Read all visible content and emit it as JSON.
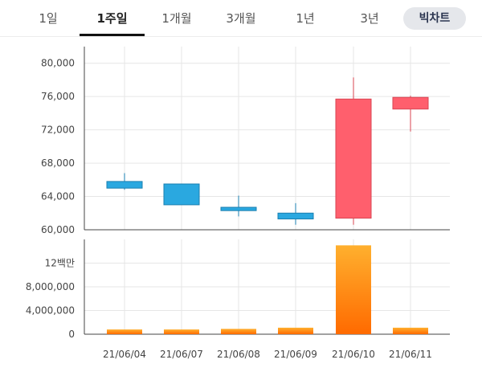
{
  "tabs": [
    {
      "label": "1일",
      "active": false
    },
    {
      "label": "1주일",
      "active": true
    },
    {
      "label": "1개월",
      "active": false
    },
    {
      "label": "3개월",
      "active": false
    },
    {
      "label": "1년",
      "active": false
    },
    {
      "label": "3년",
      "active": false
    }
  ],
  "candle_button": "빅차트",
  "colors": {
    "down": "#2aa8e0",
    "up": "#ff5f6d",
    "volume_top": "#ffb02e",
    "volume_bottom": "#ff6a00"
  },
  "chart_data": [
    {
      "type": "candlestick",
      "categories": [
        "21/06/04",
        "21/06/07",
        "21/06/08",
        "21/06/09",
        "21/06/10",
        "21/06/11"
      ],
      "series": [
        {
          "open": 65800,
          "high": 66800,
          "low": 64800,
          "close": 65000
        },
        {
          "open": 65500,
          "high": 65500,
          "low": 63000,
          "close": 63000
        },
        {
          "open": 62700,
          "high": 64100,
          "low": 61600,
          "close": 62300
        },
        {
          "open": 62000,
          "high": 63200,
          "low": 60600,
          "close": 61300
        },
        {
          "open": 61400,
          "high": 78300,
          "low": 60600,
          "close": 75700
        },
        {
          "open": 74500,
          "high": 76100,
          "low": 71800,
          "close": 75900
        }
      ],
      "y_ticks": [
        "80,000",
        "76,000",
        "72,000",
        "68,000",
        "64,000",
        "60,000"
      ],
      "ylim": [
        60000,
        82000
      ],
      "grid": true
    },
    {
      "type": "bar",
      "categories": [
        "21/06/04",
        "21/06/07",
        "21/06/08",
        "21/06/09",
        "21/06/10",
        "21/06/11"
      ],
      "values": [
        800000,
        800000,
        900000,
        1100000,
        15000000,
        1100000
      ],
      "y_ticks": [
        "12백만",
        "8,000,000",
        "4,000,000",
        "0"
      ],
      "ylim": [
        0,
        16000000
      ],
      "grid": true
    }
  ]
}
